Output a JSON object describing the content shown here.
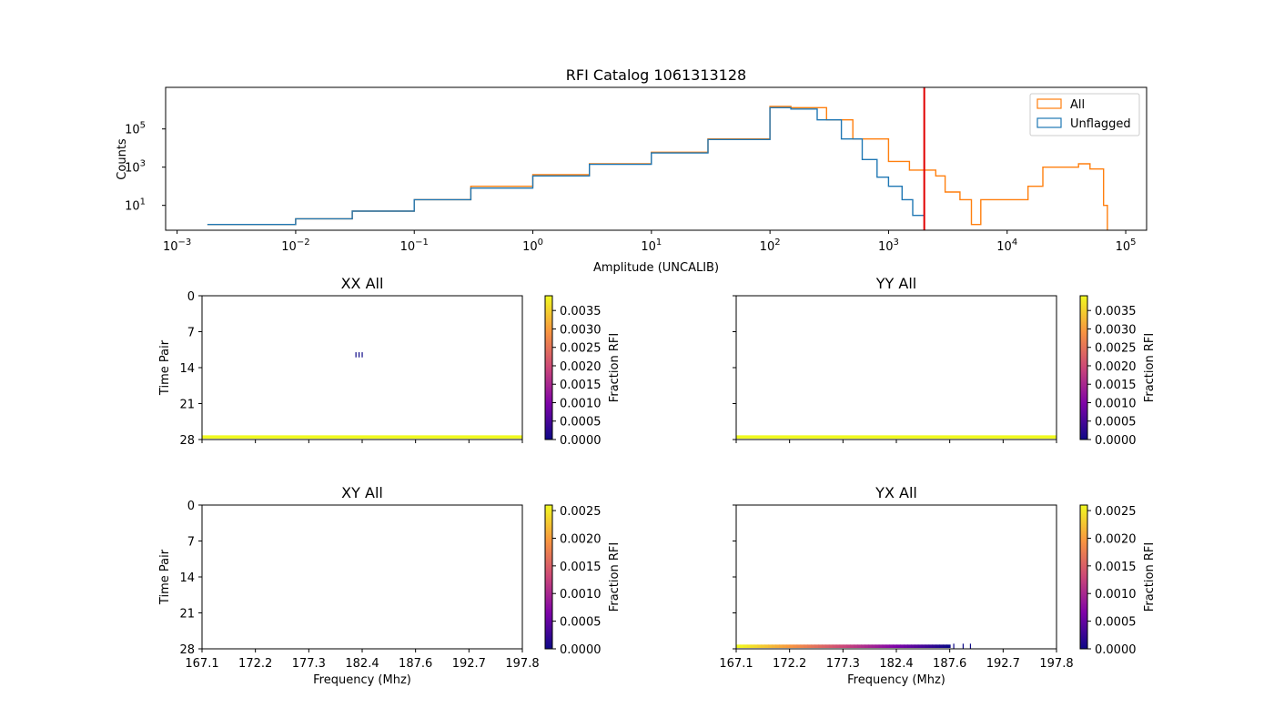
{
  "chart_data": [
    {
      "type": "line",
      "title": "RFI Catalog 1061313128",
      "xlabel": "Amplitude (UNCALIB)",
      "ylabel": "Counts",
      "xscale": "log",
      "yscale": "log",
      "xlim": [
        0.0008,
        150000
      ],
      "ylim": [
        0.5,
        15000000
      ],
      "x_ticks": [
        {
          "value": 0.001,
          "base": "10",
          "exp": "−3"
        },
        {
          "value": 0.01,
          "base": "10",
          "exp": "−2"
        },
        {
          "value": 0.1,
          "base": "10",
          "exp": "−1"
        },
        {
          "value": 1,
          "base": "10",
          "exp": "0"
        },
        {
          "value": 10,
          "base": "10",
          "exp": "1"
        },
        {
          "value": 100,
          "base": "10",
          "exp": "2"
        },
        {
          "value": 1000,
          "base": "10",
          "exp": "3"
        },
        {
          "value": 10000,
          "base": "10",
          "exp": "4"
        },
        {
          "value": 100000,
          "base": "10",
          "exp": "5"
        }
      ],
      "y_ticks": [
        {
          "value": 10,
          "base": "10",
          "exp": "1"
        },
        {
          "value": 1000,
          "base": "10",
          "exp": "3"
        },
        {
          "value": 100000,
          "base": "10",
          "exp": "5"
        }
      ],
      "cutoff_line": {
        "x": 2000,
        "color": "#e00000"
      },
      "legend": {
        "position": "top-right"
      },
      "series": [
        {
          "name": "All",
          "color": "#ff7f0e",
          "points": [
            [
              0.0018,
              1
            ],
            [
              0.003,
              1
            ],
            [
              0.01,
              2
            ],
            [
              0.03,
              5
            ],
            [
              0.1,
              20
            ],
            [
              0.3,
              100
            ],
            [
              1,
              400
            ],
            [
              3,
              1500
            ],
            [
              10,
              6000
            ],
            [
              30,
              30000
            ],
            [
              100,
              1500000
            ],
            [
              150,
              1300000
            ],
            [
              300,
              300000
            ],
            [
              500,
              30000
            ],
            [
              1000,
              2000
            ],
            [
              1500,
              700
            ],
            [
              2000,
              700
            ],
            [
              2500,
              350
            ],
            [
              3000,
              50
            ],
            [
              4000,
              20
            ],
            [
              5000,
              1
            ],
            [
              6000,
              20
            ],
            [
              8000,
              20
            ],
            [
              10000,
              20
            ],
            [
              15000,
              100
            ],
            [
              20000,
              1000
            ],
            [
              40000,
              1500
            ],
            [
              50000,
              800
            ],
            [
              65000,
              10
            ],
            [
              70000,
              0.5
            ]
          ]
        },
        {
          "name": "Unflagged",
          "color": "#1f77b4",
          "points": [
            [
              0.0018,
              1
            ],
            [
              0.003,
              1
            ],
            [
              0.01,
              2
            ],
            [
              0.03,
              5
            ],
            [
              0.1,
              20
            ],
            [
              0.3,
              80
            ],
            [
              1,
              350
            ],
            [
              3,
              1400
            ],
            [
              10,
              5500
            ],
            [
              30,
              28000
            ],
            [
              100,
              1300000
            ],
            [
              150,
              1100000
            ],
            [
              250,
              300000
            ],
            [
              400,
              30000
            ],
            [
              600,
              2500
            ],
            [
              800,
              300
            ],
            [
              1000,
              100
            ],
            [
              1300,
              20
            ],
            [
              1600,
              3
            ],
            [
              2000,
              0.8
            ]
          ]
        }
      ]
    },
    {
      "type": "heatmap",
      "title": "XX All",
      "ylabel": "Time Pair",
      "xlabel": "",
      "x_ticks": [
        "167.1",
        "172.2",
        "177.3",
        "182.4",
        "187.6",
        "192.7",
        "197.8"
      ],
      "y_ticks": [
        "0",
        "7",
        "14",
        "21",
        "28"
      ],
      "xlim": [
        167.1,
        197.8
      ],
      "ylim": [
        28,
        0
      ],
      "colorbar": {
        "label": "Fraction RFI",
        "min": 0,
        "max": 0.0039,
        "ticks": [
          "0.0000",
          "0.0005",
          "0.0010",
          "0.0015",
          "0.0020",
          "0.0025",
          "0.0030",
          "0.0035"
        ],
        "colormap": "plasma"
      },
      "cells": [
        {
          "f_start": 167.1,
          "f_end": 197.8,
          "t": 27,
          "value": 0.0039
        },
        {
          "f_start": 181.8,
          "f_end": 181.9,
          "t": 11,
          "value": 0.0
        },
        {
          "f_start": 182.1,
          "f_end": 182.2,
          "t": 11,
          "value": 0.0
        },
        {
          "f_start": 182.4,
          "f_end": 182.5,
          "t": 11,
          "value": 0.0
        }
      ]
    },
    {
      "type": "heatmap",
      "title": "YY All",
      "ylabel": "",
      "xlabel": "",
      "x_ticks": [
        "167.1",
        "172.2",
        "177.3",
        "182.4",
        "187.6",
        "192.7",
        "197.8"
      ],
      "y_ticks": [
        "0",
        "7",
        "14",
        "21",
        "28"
      ],
      "xlim": [
        167.1,
        197.8
      ],
      "ylim": [
        28,
        0
      ],
      "colorbar": {
        "label": "Fraction RFI",
        "min": 0,
        "max": 0.0039,
        "ticks": [
          "0.0000",
          "0.0005",
          "0.0010",
          "0.0015",
          "0.0020",
          "0.0025",
          "0.0030",
          "0.0035"
        ],
        "colormap": "plasma"
      },
      "cells": [
        {
          "f_start": 167.1,
          "f_end": 197.8,
          "t": 27,
          "value": 0.0039
        }
      ]
    },
    {
      "type": "heatmap",
      "title": "XY All",
      "ylabel": "Time Pair",
      "xlabel": "Frequency (Mhz)",
      "x_ticks": [
        "167.1",
        "172.2",
        "177.3",
        "182.4",
        "187.6",
        "192.7",
        "197.8"
      ],
      "y_ticks": [
        "0",
        "7",
        "14",
        "21",
        "28"
      ],
      "xlim": [
        167.1,
        197.8
      ],
      "ylim": [
        28,
        0
      ],
      "colorbar": {
        "label": "Fraction RFI",
        "min": 0,
        "max": 0.0026,
        "ticks": [
          "0.0000",
          "0.0005",
          "0.0010",
          "0.0015",
          "0.0020",
          "0.0025"
        ],
        "colormap": "plasma"
      },
      "cells": []
    },
    {
      "type": "heatmap",
      "title": "YX All",
      "ylabel": "",
      "xlabel": "Frequency (Mhz)",
      "x_ticks": [
        "167.1",
        "172.2",
        "177.3",
        "182.4",
        "187.6",
        "192.7",
        "197.8"
      ],
      "y_ticks": [
        "0",
        "7",
        "14",
        "21",
        "28"
      ],
      "xlim": [
        167.1,
        197.8
      ],
      "ylim": [
        28,
        0
      ],
      "colorbar": {
        "label": "Fraction RFI",
        "min": 0,
        "max": 0.0026,
        "ticks": [
          "0.0000",
          "0.0005",
          "0.0010",
          "0.0015",
          "0.0020",
          "0.0025"
        ],
        "colormap": "plasma"
      },
      "gradient_band": {
        "t": 27,
        "f_start": 167.1,
        "f_end": 187.6,
        "value_start": 0.0026,
        "value_end": 0.0
      },
      "cells": [
        {
          "f_start": 187.9,
          "f_end": 188.0,
          "t": 27,
          "value": 0.0
        },
        {
          "f_start": 188.8,
          "f_end": 188.9,
          "t": 27,
          "value": 0.0
        },
        {
          "f_start": 189.5,
          "f_end": 189.6,
          "t": 27,
          "value": 0.0
        }
      ]
    }
  ]
}
